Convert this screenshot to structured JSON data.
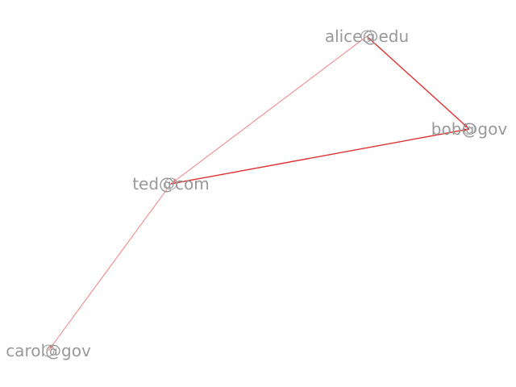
{
  "graph": {
    "nodes": [
      {
        "id": "alice",
        "label": "alice@edu"
      },
      {
        "id": "bob",
        "label": "bob@gov"
      },
      {
        "id": "ted",
        "label": "ted@com"
      },
      {
        "id": "carol",
        "label": "carol@gov"
      }
    ],
    "edges": [
      {
        "source": "alice",
        "target": "ted",
        "weight": 1,
        "color": "#f08080"
      },
      {
        "source": "alice",
        "target": "bob",
        "weight": 2,
        "color": "#e03030"
      },
      {
        "source": "ted",
        "target": "bob",
        "weight": 2,
        "color": "#e03030"
      },
      {
        "source": "ted",
        "target": "carol",
        "weight": 1,
        "color": "#f08080"
      }
    ],
    "colors": {
      "label": "#999999",
      "strong_edge": "#e03030",
      "weak_edge": "#f08080"
    }
  }
}
